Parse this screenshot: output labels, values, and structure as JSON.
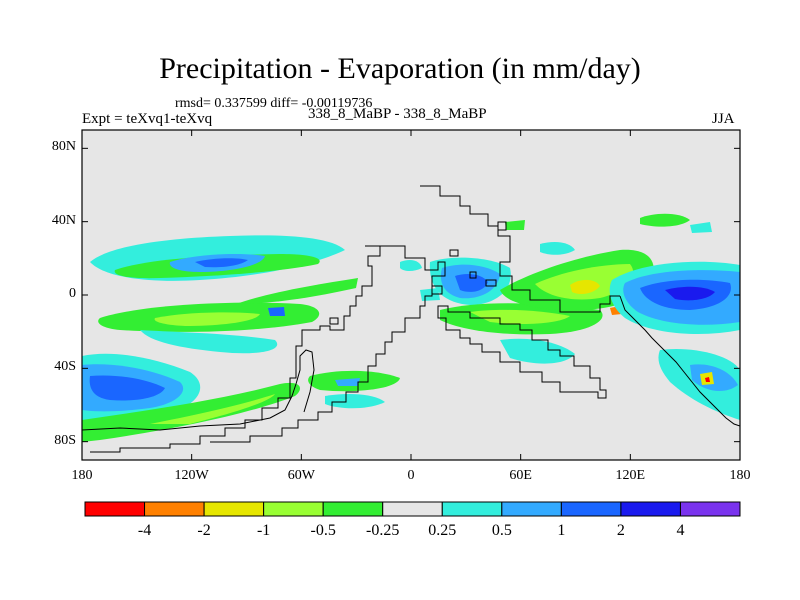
{
  "header": {
    "title": "Precipitation - Evaporation (in mm/day)",
    "stats": "rmsd= 0.337599 diff= -0.00119736",
    "experiment": "Expt = teXvq1-teXvq",
    "case": "338_8_MaBP - 338_8_MaBP",
    "season": "JJA"
  },
  "axes": {
    "y_ticks": [
      {
        "label": "80N",
        "lat": 80
      },
      {
        "label": "40N",
        "lat": 40
      },
      {
        "label": "0",
        "lat": 0
      },
      {
        "label": "40S",
        "lat": -40
      },
      {
        "label": "80S",
        "lat": -80
      }
    ],
    "x_ticks": [
      {
        "label": "180",
        "lon": -180
      },
      {
        "label": "120W",
        "lon": -120
      },
      {
        "label": "60W",
        "lon": -60
      },
      {
        "label": "0",
        "lon": 0
      },
      {
        "label": "60E",
        "lon": 60
      },
      {
        "label": "120E",
        "lon": 120
      },
      {
        "label": "180",
        "lon": 180
      }
    ]
  },
  "colorbar": {
    "colors": [
      "#ff0000",
      "#ff8000",
      "#e6e600",
      "#99ff33",
      "#33ee33",
      "#e6e6e6",
      "#33eedd",
      "#33aaff",
      "#1a66ff",
      "#1a1aee",
      "#7a33ee"
    ],
    "labels": [
      "-4",
      "-2",
      "-1",
      "-0.5",
      "-0.25",
      "0.25",
      "0.5",
      "1",
      "2",
      "4"
    ]
  },
  "colors": {
    "background": "#e6e6e6",
    "coast": "#000000"
  }
}
